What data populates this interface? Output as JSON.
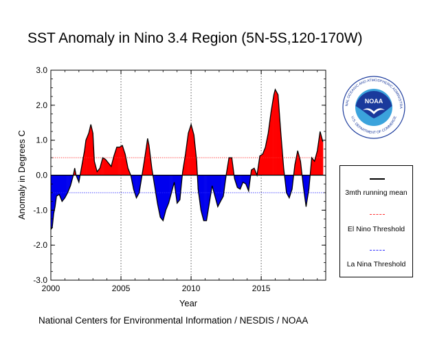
{
  "chart_data": {
    "type": "area",
    "title": "SST Anomaly in Nino 3.4 Region (5N-5S,120-170W)",
    "xlabel": "Year",
    "ylabel": "Anomaly in Degrees C",
    "xlim": [
      2000,
      2019.6
    ],
    "ylim": [
      -3.0,
      3.0
    ],
    "xticks": [
      2000,
      2005,
      2010,
      2015
    ],
    "xtick_labels": [
      "2000",
      "2005",
      "2010",
      "2015"
    ],
    "yticks": [
      3.0,
      2.0,
      1.0,
      0.0,
      -1.0,
      -2.0,
      -3.0
    ],
    "ytick_labels": [
      "3.0",
      "2.0",
      "1.0",
      "0.0",
      "-1.0",
      "-2.0",
      "-3.0"
    ],
    "thresholds": [
      {
        "name": "El Nino Threshold",
        "value": 0.5,
        "color": "#ff3030"
      },
      {
        "name": "La Nina Threshold",
        "value": -0.5,
        "color": "#3030ff"
      }
    ],
    "colors": {
      "positive": "#ff0000",
      "negative": "#0000ee",
      "running_mean": "#000000"
    },
    "legend": {
      "position": "right",
      "entries": [
        "3mth running mean",
        "El Nino Threshold",
        "La Nina Threshold"
      ]
    },
    "series": [
      {
        "name": "SST Anomaly",
        "x": [
          2000.0,
          2000.1,
          2000.2,
          2000.3,
          2000.4,
          2000.6,
          2000.8,
          2001.0,
          2001.2,
          2001.4,
          2001.6,
          2001.7,
          2001.8,
          2002.0,
          2002.2,
          2002.4,
          2002.5,
          2002.7,
          2002.85,
          2003.0,
          2003.1,
          2003.3,
          2003.5,
          2003.7,
          2003.9,
          2004.1,
          2004.3,
          2004.5,
          2004.7,
          2004.9,
          2005.1,
          2005.3,
          2005.5,
          2005.7,
          2005.9,
          2006.1,
          2006.3,
          2006.5,
          2006.7,
          2006.9,
          2007.0,
          2007.2,
          2007.4,
          2007.6,
          2007.8,
          2008.0,
          2008.2,
          2008.4,
          2008.6,
          2008.8,
          2009.0,
          2009.2,
          2009.4,
          2009.6,
          2009.8,
          2010.0,
          2010.2,
          2010.4,
          2010.5,
          2010.7,
          2010.9,
          2011.1,
          2011.3,
          2011.5,
          2011.7,
          2011.9,
          2012.1,
          2012.3,
          2012.5,
          2012.7,
          2012.9,
          2013.1,
          2013.3,
          2013.5,
          2013.7,
          2013.9,
          2014.1,
          2014.3,
          2014.5,
          2014.7,
          2014.9,
          2015.1,
          2015.3,
          2015.5,
          2015.7,
          2015.9,
          2016.0,
          2016.2,
          2016.4,
          2016.6,
          2016.8,
          2017.0,
          2017.2,
          2017.4,
          2017.6,
          2017.8,
          2018.0,
          2018.2,
          2018.4,
          2018.6,
          2018.8,
          2019.0,
          2019.2,
          2019.4
        ],
        "values": [
          -1.55,
          -1.5,
          -1.1,
          -0.9,
          -0.6,
          -0.55,
          -0.75,
          -0.65,
          -0.5,
          -0.3,
          0.0,
          0.2,
          0.0,
          -0.2,
          0.25,
          0.7,
          1.0,
          1.2,
          1.45,
          1.2,
          0.4,
          0.1,
          0.2,
          0.5,
          0.45,
          0.35,
          0.25,
          0.55,
          0.8,
          0.8,
          0.85,
          0.6,
          0.2,
          0.0,
          -0.4,
          -0.65,
          -0.5,
          0.0,
          0.5,
          1.05,
          0.85,
          0.2,
          -0.3,
          -0.8,
          -1.2,
          -1.3,
          -1.0,
          -0.8,
          -0.5,
          -0.2,
          -0.8,
          -0.7,
          0.1,
          0.6,
          1.2,
          1.45,
          1.15,
          0.4,
          -0.4,
          -1.0,
          -1.3,
          -1.3,
          -0.8,
          -0.3,
          -0.6,
          -0.9,
          -0.75,
          -0.6,
          0.0,
          0.5,
          0.5,
          -0.1,
          -0.35,
          -0.4,
          -0.2,
          -0.25,
          -0.45,
          0.15,
          0.2,
          0.0,
          0.55,
          0.6,
          0.8,
          1.2,
          1.8,
          2.3,
          2.45,
          2.3,
          1.2,
          0.2,
          -0.5,
          -0.65,
          -0.4,
          0.3,
          0.7,
          0.4,
          -0.3,
          -0.9,
          -0.4,
          0.5,
          0.4,
          0.7,
          1.25,
          0.95
        ]
      }
    ]
  },
  "legend_labels": {
    "running_mean": "3mth running mean",
    "el_nino": "El Nino Threshold",
    "la_nina": "La Nina Threshold"
  },
  "footer": "National Centers for Environmental Information / NESDIS / NOAA",
  "logo": {
    "center_text": "NOAA",
    "ring_text_top": "NATIONAL OCEANIC AND ATMOSPHERIC ADMINISTRATION",
    "ring_text_bottom": "U.S. DEPARTMENT OF COMMERCE",
    "colors": {
      "sky": "#1a3a9c",
      "wave": "#3ba3dc",
      "gull": "#ffffff"
    }
  }
}
